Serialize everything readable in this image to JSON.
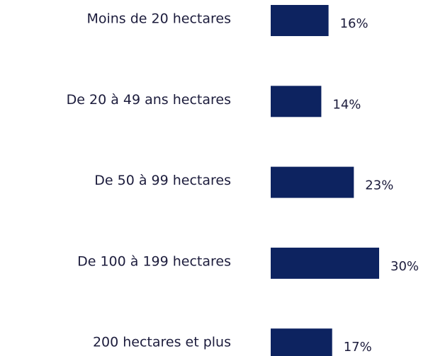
{
  "chart_data": {
    "type": "hbar",
    "categories": [
      "Moins de 20 hectares",
      "De 20 à 49 ans hectares",
      "De 50 à 99 hectares",
      "De 100 à 199 hectares",
      "200 hectares et plus"
    ],
    "values": [
      16,
      14,
      23,
      30,
      17
    ],
    "value_labels": [
      "16%",
      "14%",
      "23%",
      "30%",
      "17%"
    ],
    "color": "#0d2360"
  }
}
